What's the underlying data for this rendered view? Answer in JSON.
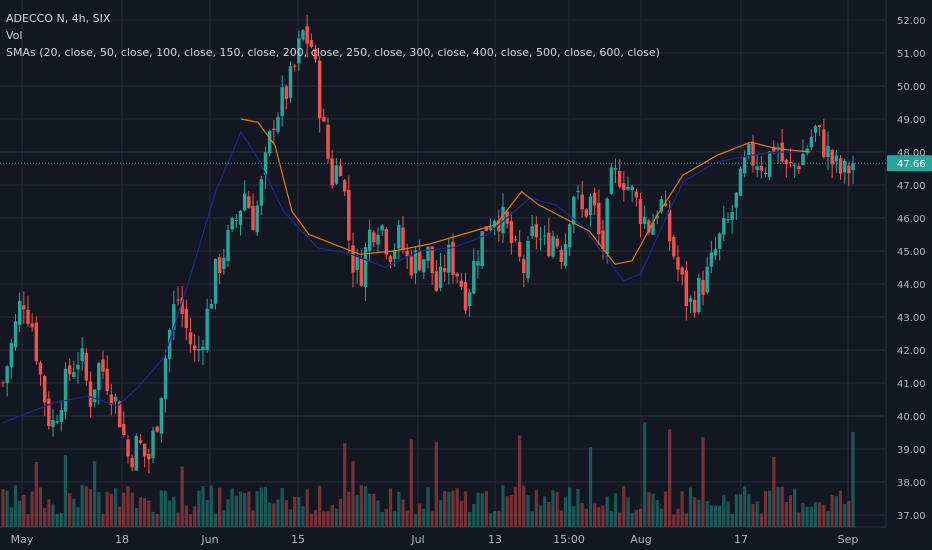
{
  "legend": {
    "symbol_line": "ADECCO N, 4h, SIX",
    "vol_label": "Vol",
    "sma_line": "SMAs (20, close, 50, close, 100, close, 150, close, 200, close, 250, close, 300, close, 400, close, 500, close, 600, close)"
  },
  "chart_data": {
    "type": "candlestick",
    "symbol": "ADECCO N",
    "interval": "4h",
    "exchange": "SIX",
    "y_axis": {
      "min": 37.0,
      "max": 52.0,
      "step": 1.0,
      "position": "right",
      "tick_labels": [
        "37.00",
        "38.00",
        "39.00",
        "40.00",
        "41.00",
        "42.00",
        "43.00",
        "44.00",
        "45.00",
        "46.00",
        "47.00",
        "48.00",
        "49.00",
        "50.00",
        "51.00",
        "52.00"
      ]
    },
    "x_axis_labels": [
      "May",
      "18",
      "Jun",
      "15",
      "Jul",
      "13",
      "15:00",
      "Aug",
      "17",
      "Sep"
    ],
    "last_price": 47.66,
    "last_price_label": "47.66",
    "grid": true,
    "colors": {
      "background": "#131722",
      "grid": "#2a2e39",
      "up": "#26a69a",
      "down": "#ef5350",
      "sma_blue": "#1e2a8a",
      "sma_orange": "#e07b18",
      "axis_text": "#b2b5be",
      "last_price_bg": "#26a69a"
    },
    "price_path": [
      41.0,
      42.3,
      43.7,
      42.8,
      41.0,
      39.6,
      40.6,
      41.4,
      41.9,
      40.5,
      41.6,
      41.0,
      40.1,
      38.7,
      39.2,
      38.6,
      40.0,
      42.2,
      43.7,
      42.6,
      41.7,
      42.9,
      44.3,
      45.1,
      45.8,
      46.8,
      45.9,
      47.3,
      49.0,
      49.6,
      50.3,
      51.6,
      51.2,
      49.0,
      47.2,
      47.8,
      44.8,
      44.3,
      45.6,
      46.0,
      45.0,
      45.4,
      44.6,
      44.8,
      44.9,
      43.7,
      44.9,
      44.4,
      43.6,
      44.9,
      45.8,
      46.2,
      45.8,
      44.9,
      44.4,
      45.7,
      45.1,
      45.5,
      44.9,
      46.9,
      46.1,
      46.6,
      44.9,
      47.1,
      47.4,
      46.8,
      46.2,
      45.7,
      46.6,
      45.4,
      44.3,
      43.3,
      43.8,
      44.3,
      45.2,
      45.8,
      46.6,
      47.8,
      47.8,
      47.6,
      48.4,
      47.4,
      47.6,
      48.0,
      48.7,
      48.2,
      47.6,
      47.3,
      47.66
    ],
    "sma_blue": [
      {
        "t": 0,
        "p": 39.8
      },
      {
        "t": 0.06,
        "p": 40.4
      },
      {
        "t": 0.1,
        "p": 40.6
      },
      {
        "t": 0.135,
        "p": 40.3
      },
      {
        "t": 0.16,
        "p": 40.9
      },
      {
        "t": 0.19,
        "p": 41.8
      },
      {
        "t": 0.22,
        "p": 44.2
      },
      {
        "t": 0.25,
        "p": 46.8
      },
      {
        "t": 0.28,
        "p": 48.6
      },
      {
        "t": 0.3,
        "p": 47.8
      },
      {
        "t": 0.33,
        "p": 46.2
      },
      {
        "t": 0.37,
        "p": 45.1
      },
      {
        "t": 0.41,
        "p": 44.9
      },
      {
        "t": 0.45,
        "p": 44.5
      },
      {
        "t": 0.49,
        "p": 45.0
      },
      {
        "t": 0.53,
        "p": 45.1
      },
      {
        "t": 0.57,
        "p": 45.5
      },
      {
        "t": 0.62,
        "p": 46.6
      },
      {
        "t": 0.65,
        "p": 46.4
      },
      {
        "t": 0.68,
        "p": 45.8
      },
      {
        "t": 0.71,
        "p": 44.8
      },
      {
        "t": 0.73,
        "p": 44.1
      },
      {
        "t": 0.75,
        "p": 44.3
      },
      {
        "t": 0.78,
        "p": 46.0
      },
      {
        "t": 0.8,
        "p": 47.1
      },
      {
        "t": 0.84,
        "p": 47.7
      },
      {
        "t": 0.88,
        "p": 47.9
      },
      {
        "t": 0.91,
        "p": 48.0
      },
      {
        "t": 0.95,
        "p": 48.0
      }
    ],
    "sma_orange": [
      {
        "t": 0.28,
        "p": 49.0
      },
      {
        "t": 0.3,
        "p": 48.9
      },
      {
        "t": 0.32,
        "p": 48.2
      },
      {
        "t": 0.34,
        "p": 46.2
      },
      {
        "t": 0.36,
        "p": 45.5
      },
      {
        "t": 0.39,
        "p": 45.2
      },
      {
        "t": 0.42,
        "p": 44.9
      },
      {
        "t": 0.46,
        "p": 45.0
      },
      {
        "t": 0.5,
        "p": 45.2
      },
      {
        "t": 0.54,
        "p": 45.5
      },
      {
        "t": 0.58,
        "p": 45.8
      },
      {
        "t": 0.61,
        "p": 46.8
      },
      {
        "t": 0.63,
        "p": 46.4
      },
      {
        "t": 0.66,
        "p": 46.0
      },
      {
        "t": 0.69,
        "p": 45.6
      },
      {
        "t": 0.72,
        "p": 44.6
      },
      {
        "t": 0.74,
        "p": 44.7
      },
      {
        "t": 0.77,
        "p": 46.1
      },
      {
        "t": 0.8,
        "p": 47.3
      },
      {
        "t": 0.84,
        "p": 47.9
      },
      {
        "t": 0.88,
        "p": 48.3
      },
      {
        "t": 0.91,
        "p": 48.1
      },
      {
        "t": 0.95,
        "p": 48.0
      }
    ]
  }
}
